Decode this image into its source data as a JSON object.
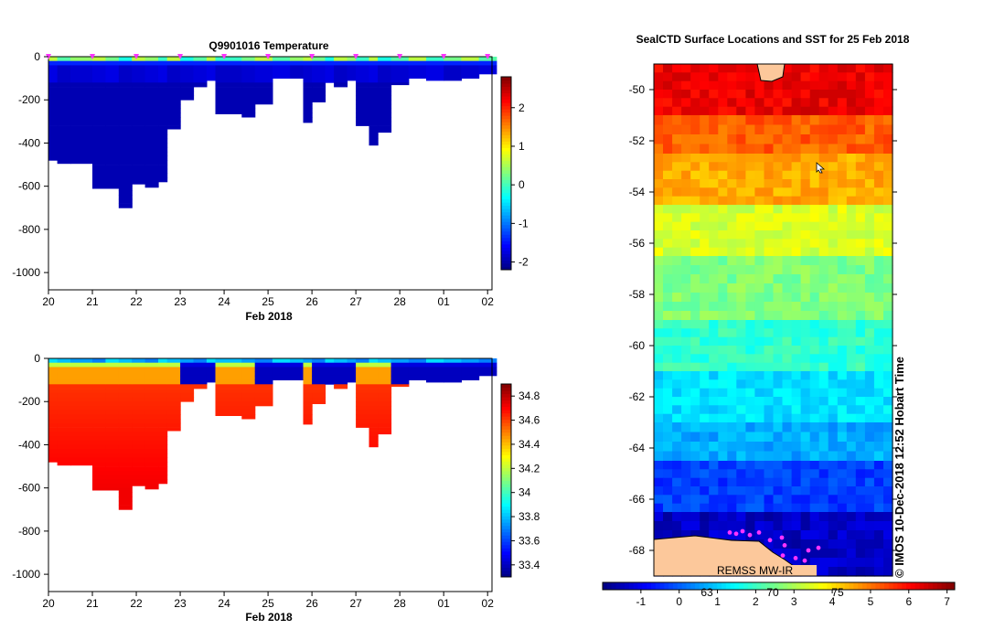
{
  "chart_data": [
    {
      "type": "heatmap",
      "title": "Q9901016  Temperature",
      "xlabel": "Feb 2018",
      "ylabel": "",
      "x_ticks": [
        "20",
        "21",
        "22",
        "23",
        "24",
        "25",
        "26",
        "27",
        "28",
        "01",
        "02"
      ],
      "y_ticks": [
        "0",
        "-200",
        "-400",
        "-600",
        "-800",
        "-1000"
      ],
      "ylim": [
        -1080,
        0
      ],
      "colorbar": {
        "ticks": [
          "2",
          "1",
          "0",
          "-1",
          "-2"
        ],
        "range": [
          -2.2,
          2.8
        ]
      },
      "profiles": [
        {
          "day": 20.0,
          "depth": 480
        },
        {
          "day": 20.2,
          "depth": 495
        },
        {
          "day": 20.5,
          "depth": 495
        },
        {
          "day": 21.0,
          "depth": 610
        },
        {
          "day": 21.3,
          "depth": 610
        },
        {
          "day": 21.6,
          "depth": 700
        },
        {
          "day": 21.9,
          "depth": 590
        },
        {
          "day": 22.2,
          "depth": 605
        },
        {
          "day": 22.5,
          "depth": 580
        },
        {
          "day": 22.7,
          "depth": 335
        },
        {
          "day": 23.0,
          "depth": 200
        },
        {
          "day": 23.3,
          "depth": 140
        },
        {
          "day": 23.6,
          "depth": 110
        },
        {
          "day": 23.8,
          "depth": 265
        },
        {
          "day": 24.4,
          "depth": 280
        },
        {
          "day": 24.7,
          "depth": 220
        },
        {
          "day": 25.1,
          "depth": 100
        },
        {
          "day": 25.5,
          "depth": 100
        },
        {
          "day": 25.8,
          "depth": 305
        },
        {
          "day": 26.0,
          "depth": 210
        },
        {
          "day": 26.3,
          "depth": 120
        },
        {
          "day": 26.5,
          "depth": 140
        },
        {
          "day": 26.8,
          "depth": 110
        },
        {
          "day": 27.0,
          "depth": 320
        },
        {
          "day": 27.3,
          "depth": 410
        },
        {
          "day": 27.5,
          "depth": 350
        },
        {
          "day": 27.8,
          "depth": 130
        },
        {
          "day": 28.2,
          "depth": 100
        },
        {
          "day": 28.6,
          "depth": 110
        },
        {
          "day": 29.0,
          "depth": 110
        },
        {
          "day": 29.4,
          "depth": 100
        },
        {
          "day": 29.8,
          "depth": 80
        }
      ],
      "profile_markers_days": [
        20,
        21,
        22,
        23,
        24,
        25,
        26,
        27,
        28,
        29,
        30
      ]
    },
    {
      "type": "heatmap",
      "title": "",
      "xlabel": "Feb 2018",
      "ylabel": "",
      "x_ticks": [
        "20",
        "21",
        "22",
        "23",
        "24",
        "25",
        "26",
        "27",
        "28",
        "01",
        "02"
      ],
      "y_ticks": [
        "0",
        "-200",
        "-400",
        "-600",
        "-800",
        "-1000"
      ],
      "ylim": [
        -1080,
        0
      ],
      "colorbar": {
        "ticks": [
          "34.8",
          "34.6",
          "34.4",
          "34.2",
          "34",
          "33.8",
          "33.6",
          "33.4"
        ],
        "range": [
          33.3,
          34.9
        ]
      }
    },
    {
      "type": "heatmap",
      "title": "SealCTD Surface Locations and SST for 25 Feb 2018",
      "y_ticks": [
        "-50",
        "-52",
        "-54",
        "-56",
        "-58",
        "-60",
        "-62",
        "-64",
        "-66",
        "-68"
      ],
      "ylim": [
        -69,
        -49
      ],
      "colorbar": {
        "ticks": [
          "-1",
          "0",
          "1",
          "2",
          "3",
          "4",
          "5",
          "6",
          "7"
        ],
        "range": [
          -2,
          7.2
        ]
      },
      "extra_tick_labels": [
        "63",
        "70",
        "75"
      ],
      "source_label": "REMSS MW-IR",
      "sst_bands": [
        {
          "lat_from": -49,
          "lat_to": -51,
          "sst": 6.2
        },
        {
          "lat_from": -51,
          "lat_to": -52.5,
          "sst": 5.2
        },
        {
          "lat_from": -52.5,
          "lat_to": -54.5,
          "sst": 4.5
        },
        {
          "lat_from": -54.5,
          "lat_to": -56.5,
          "sst": 3.4
        },
        {
          "lat_from": -56.5,
          "lat_to": -59,
          "sst": 2.6
        },
        {
          "lat_from": -59,
          "lat_to": -61,
          "sst": 1.9
        },
        {
          "lat_from": -61,
          "lat_to": -63,
          "sst": 1.2
        },
        {
          "lat_from": -63,
          "lat_to": -64.5,
          "sst": 0.7
        },
        {
          "lat_from": -64.5,
          "lat_to": -66.5,
          "sst": -0.3
        },
        {
          "lat_from": -66.5,
          "lat_to": -69,
          "sst": -1.4
        }
      ]
    }
  ],
  "credit": "© IMOS 10-Dec-2018 12:52 Hobart Time",
  "colors": {
    "jet": [
      "#00007f",
      "#0000ff",
      "#007fff",
      "#00ffff",
      "#7fff7f",
      "#ffff00",
      "#ff7f00",
      "#ff0000",
      "#7f0000"
    ],
    "land": "#fcc89b",
    "marker": "#ff33ff"
  }
}
